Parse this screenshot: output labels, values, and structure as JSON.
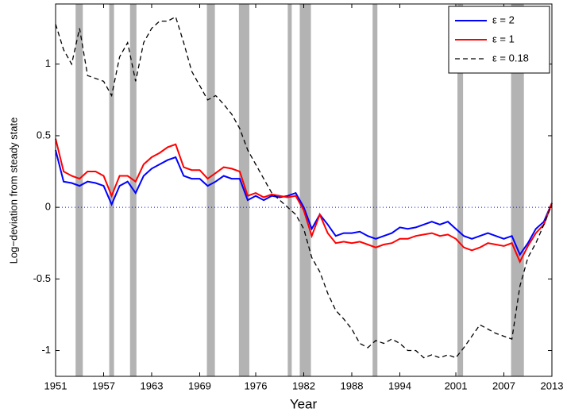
{
  "chart_data": {
    "type": "line",
    "xlabel": "Year",
    "ylabel": "Log−deviation from steady state",
    "x": [
      1951,
      1952,
      1953,
      1954,
      1955,
      1956,
      1957,
      1958,
      1959,
      1960,
      1961,
      1962,
      1963,
      1964,
      1965,
      1966,
      1967,
      1968,
      1969,
      1970,
      1971,
      1972,
      1973,
      1974,
      1975,
      1976,
      1977,
      1978,
      1979,
      1980,
      1981,
      1982,
      1983,
      1984,
      1985,
      1986,
      1987,
      1988,
      1989,
      1990,
      1991,
      1992,
      1993,
      1994,
      1995,
      1996,
      1997,
      1998,
      1999,
      2000,
      2001,
      2002,
      2003,
      2004,
      2005,
      2006,
      2007,
      2008,
      2009,
      2010,
      2011,
      2012,
      2013
    ],
    "series": [
      {
        "name": "ε = 2",
        "color": "#0000ff",
        "style": "solid",
        "values": [
          0.4,
          0.18,
          0.17,
          0.15,
          0.18,
          0.17,
          0.15,
          0.02,
          0.15,
          0.18,
          0.1,
          0.22,
          0.27,
          0.3,
          0.33,
          0.35,
          0.22,
          0.2,
          0.2,
          0.15,
          0.18,
          0.22,
          0.2,
          0.2,
          0.05,
          0.08,
          0.05,
          0.08,
          0.07,
          0.08,
          0.1,
          0.0,
          -0.15,
          -0.05,
          -0.12,
          -0.2,
          -0.18,
          -0.18,
          -0.17,
          -0.2,
          -0.22,
          -0.2,
          -0.18,
          -0.14,
          -0.15,
          -0.14,
          -0.12,
          -0.1,
          -0.12,
          -0.1,
          -0.15,
          -0.2,
          -0.22,
          -0.2,
          -0.18,
          -0.2,
          -0.22,
          -0.2,
          -0.33,
          -0.25,
          -0.15,
          -0.1,
          0.03
        ]
      },
      {
        "name": "ε = 1",
        "color": "#ff0000",
        "style": "solid",
        "values": [
          0.48,
          0.25,
          0.22,
          0.2,
          0.25,
          0.25,
          0.22,
          0.08,
          0.22,
          0.22,
          0.18,
          0.3,
          0.35,
          0.38,
          0.42,
          0.44,
          0.28,
          0.26,
          0.26,
          0.2,
          0.24,
          0.28,
          0.27,
          0.25,
          0.08,
          0.1,
          0.07,
          0.09,
          0.08,
          0.07,
          0.08,
          -0.02,
          -0.2,
          -0.05,
          -0.18,
          -0.25,
          -0.24,
          -0.25,
          -0.24,
          -0.26,
          -0.28,
          -0.26,
          -0.25,
          -0.22,
          -0.22,
          -0.2,
          -0.19,
          -0.18,
          -0.2,
          -0.19,
          -0.22,
          -0.28,
          -0.3,
          -0.28,
          -0.25,
          -0.26,
          -0.27,
          -0.25,
          -0.38,
          -0.27,
          -0.18,
          -0.12,
          0.03
        ]
      },
      {
        "name": "ε = 0.18",
        "color": "#000000",
        "style": "dashed",
        "values": [
          1.28,
          1.1,
          1.0,
          1.25,
          0.92,
          0.9,
          0.88,
          0.78,
          1.05,
          1.15,
          0.88,
          1.15,
          1.25,
          1.3,
          1.3,
          1.33,
          1.15,
          0.95,
          0.85,
          0.75,
          0.78,
          0.72,
          0.65,
          0.55,
          0.4,
          0.3,
          0.2,
          0.1,
          0.05,
          0.0,
          -0.05,
          -0.15,
          -0.35,
          -0.45,
          -0.6,
          -0.72,
          -0.78,
          -0.85,
          -0.95,
          -0.98,
          -0.93,
          -0.95,
          -0.92,
          -0.95,
          -1.0,
          -1.0,
          -1.05,
          -1.03,
          -1.05,
          -1.03,
          -1.05,
          -0.98,
          -0.9,
          -0.82,
          -0.85,
          -0.88,
          -0.9,
          -0.92,
          -0.55,
          -0.35,
          -0.25,
          -0.12,
          0.02
        ]
      }
    ],
    "shaded_periods": [
      [
        1953.5,
        1954.4
      ],
      [
        1957.7,
        1958.3
      ],
      [
        1960.3,
        1961.1
      ],
      [
        1969.9,
        1970.9
      ],
      [
        1973.9,
        1975.2
      ],
      [
        1980.0,
        1980.5
      ],
      [
        1981.5,
        1982.9
      ],
      [
        1990.6,
        1991.2
      ],
      [
        2001.2,
        2001.9
      ],
      [
        2007.9,
        2009.5
      ]
    ],
    "shade_color": "#b3b3b3",
    "hline": {
      "value": 0,
      "color": "#0000ff"
    },
    "xlim": [
      1951,
      2013
    ],
    "xticks": [
      1951,
      1957,
      1963,
      1969,
      1976,
      1982,
      1988,
      1994,
      2001,
      2007,
      2013
    ],
    "ylim": [
      -1.18,
      1.42
    ],
    "yticks": [
      -1,
      -0.5,
      0,
      0.5,
      1
    ],
    "legend": "upper right"
  }
}
